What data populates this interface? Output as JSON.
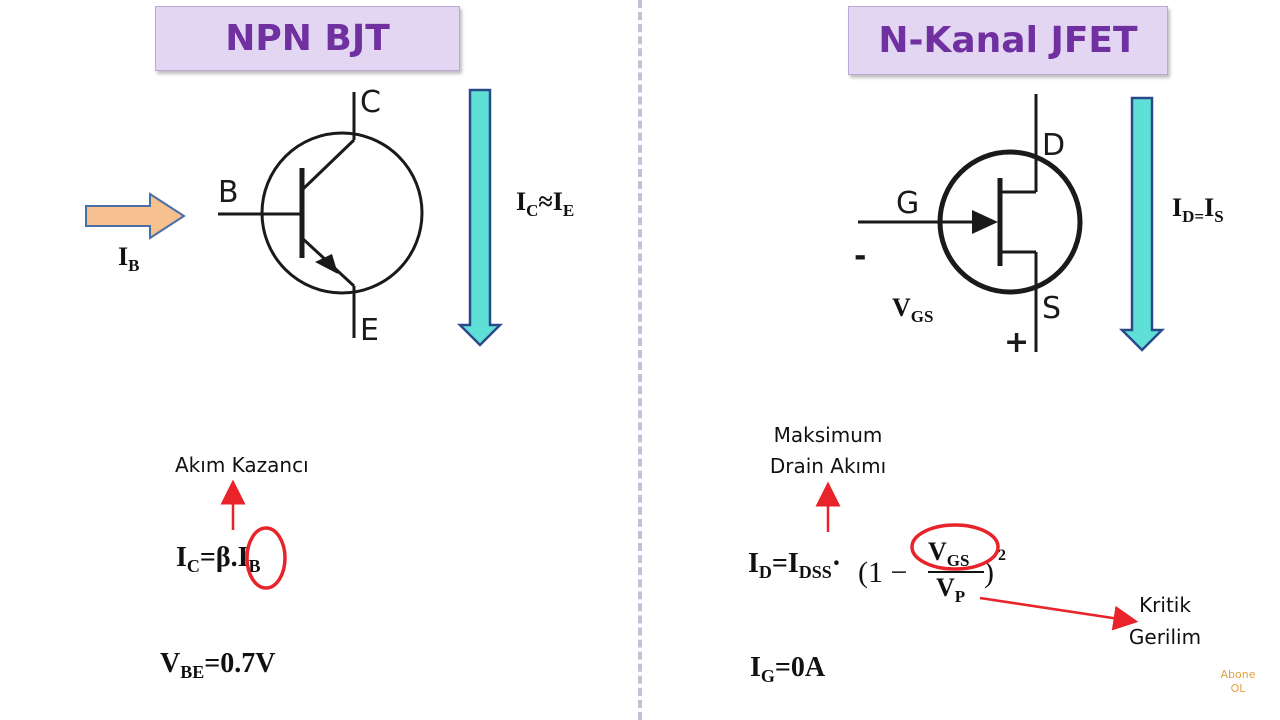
{
  "left": {
    "title": "NPN BJT",
    "terminal_c": "C",
    "terminal_b": "B",
    "terminal_e": "E",
    "current_ib": {
      "main": "I",
      "sub": "B"
    },
    "current_relation": {
      "a": "I",
      "a_sub": "C",
      "op": "≈",
      "b": "I",
      "b_sub": "E"
    },
    "gain_label": "Akım Kazancı",
    "formula_ic": {
      "lhs": "I",
      "lhs_sub": "C",
      "eq": "=β.",
      "rhs": "I",
      "rhs_sub": "B"
    },
    "formula_vbe": {
      "main": "V",
      "sub": "BE",
      "rest": "=0.7V"
    }
  },
  "right": {
    "title": "N-Kanal JFET",
    "terminal_d": "D",
    "terminal_g": "G",
    "terminal_s": "S",
    "minus": "-",
    "plus": "+",
    "vgs": {
      "main": "V",
      "sub": "GS"
    },
    "current_relation": {
      "a": "I",
      "a_sub": "D",
      "op": "=",
      "b": "I",
      "b_sub": "S"
    },
    "max_label_line1": "Maksimum",
    "max_label_line2": "Drain Akımı",
    "formula_id": {
      "lhs": "I",
      "lhs_sub": "D",
      "eq": "=I",
      "dss_sub": "DSS",
      "dot": "·",
      "paren": "(1 −",
      "num": "V",
      "num_sub": "GS",
      "den": "V",
      "den_sub": "P",
      "close": ")",
      "exp": "2"
    },
    "critical_label_line1": "Kritik",
    "critical_label_line2": "Gerilim",
    "formula_ig": {
      "main": "I",
      "sub": "G",
      "rest": "=0A"
    }
  },
  "watermark": {
    "line1": "Abone",
    "line2": "OL"
  },
  "colors": {
    "title_text": "#7030a0",
    "title_bg": "#e2d6f2",
    "teal_arrow": "#5fe0d6",
    "orange_arrow": "#f7c08f",
    "red": "#e8232a"
  }
}
